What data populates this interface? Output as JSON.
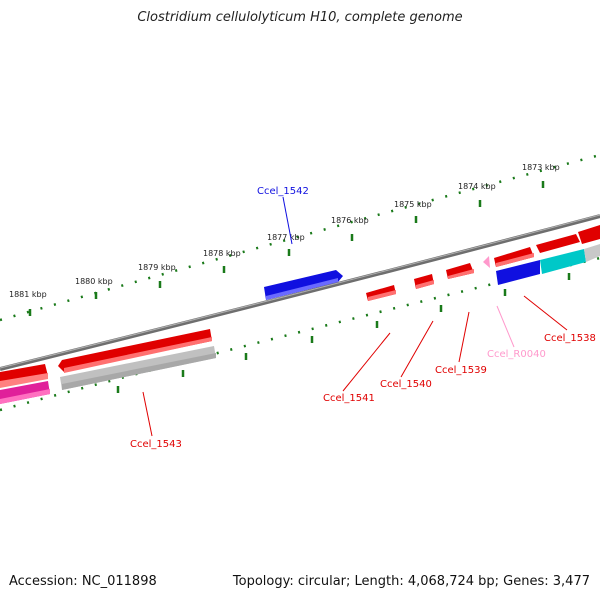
{
  "title": "Clostridium cellulolyticum H10, complete genome",
  "footer": {
    "accession": "Accession: NC_011898",
    "topology": "Topology: circular; Length: 4,068,724 bp; Genes: 3,477"
  },
  "ticks": [
    "1881 kbp",
    "1880 kbp",
    "1879 kbp",
    "1878 kbp",
    "1877 kbp",
    "1876 kbp",
    "1875 kbp",
    "1874 kbp",
    "1873 kbp"
  ],
  "genes": {
    "ccel_1542": "Ccel_1542",
    "ccel_1543": "Ccel_1543",
    "ccel_1541": "Ccel_1541",
    "ccel_1540": "Ccel_1540",
    "ccel_1539": "Ccel_1539",
    "ccel_r0040": "Ccel_R0040",
    "ccel_1538": "Ccel_1538"
  },
  "colors": {
    "forward_cds": "#e00000",
    "reverse_cds": "#1010e0",
    "rrna": "#ff99cc",
    "backbone": "#808080",
    "tick": "#1a7a1a"
  }
}
